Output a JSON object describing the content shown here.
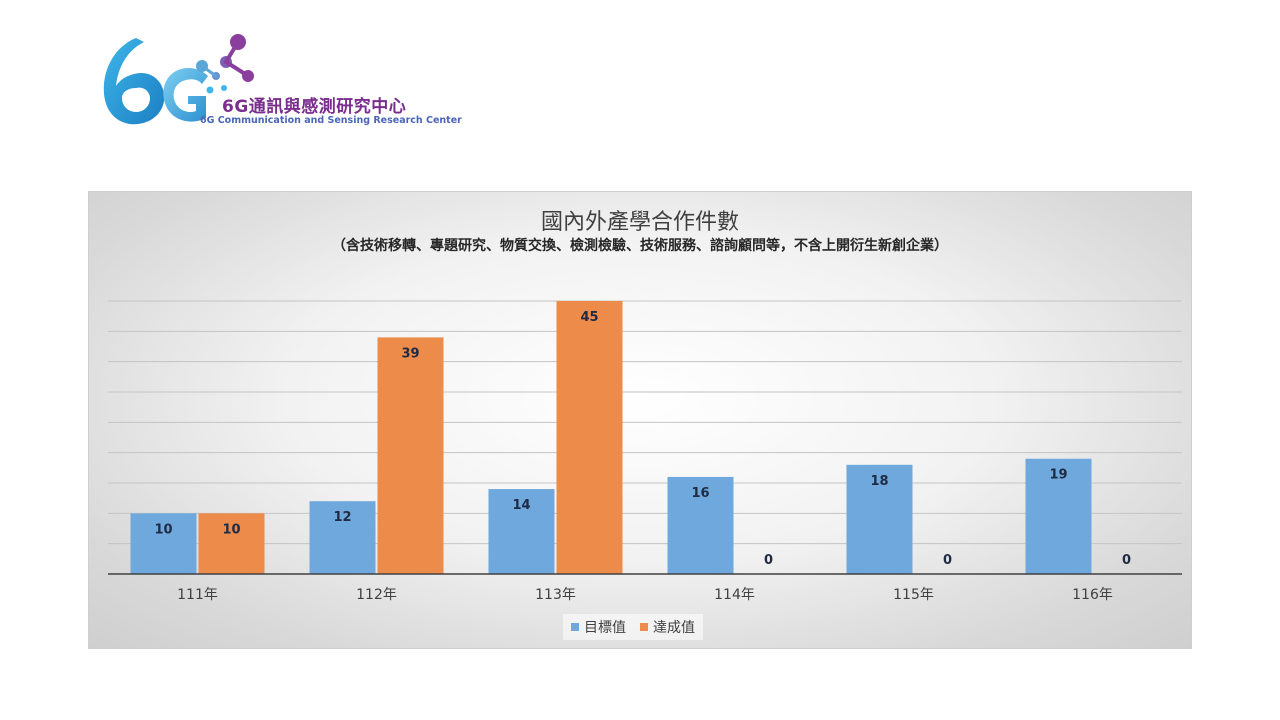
{
  "logo": {
    "mark_text": "6G",
    "title": "6G通訊與感測研究中心",
    "subtitle": "6G Communication and Sensing Research Center",
    "colors": {
      "blue": "#2a9fd8",
      "purple": "#8a3f9e"
    }
  },
  "chart_data": {
    "type": "bar",
    "title": "國內外產學合作件數",
    "subtitle": "（含技術移轉、專題研究、物質交換、檢測檢驗、技術服務、諮詢顧問等，不含上開衍生新創企業）",
    "categories": [
      "111年",
      "112年",
      "113年",
      "114年",
      "115年",
      "116年"
    ],
    "series": [
      {
        "name": "目標值",
        "values": [
          10,
          12,
          14,
          16,
          18,
          19
        ],
        "color": "#6fa8dc"
      },
      {
        "name": "達成值",
        "values": [
          10,
          39,
          45,
          0,
          0,
          0
        ],
        "color": "#ed8b4a"
      }
    ],
    "ylim": [
      0,
      45
    ],
    "grid": true,
    "legend_position": "bottom",
    "data_labels": true
  }
}
